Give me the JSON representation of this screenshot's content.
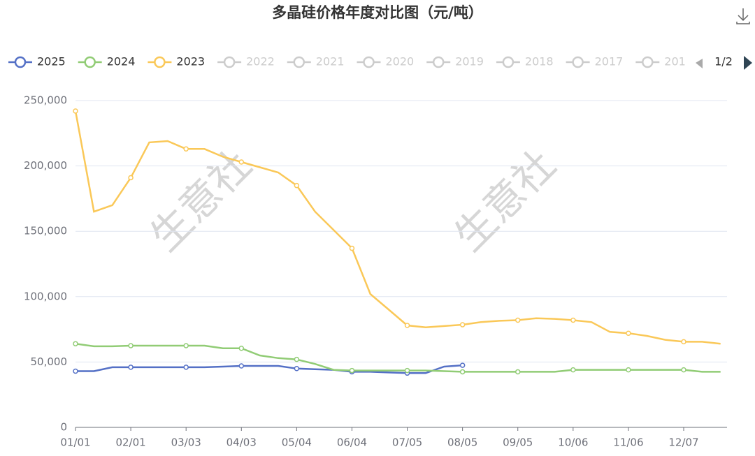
{
  "chart_data": {
    "type": "line",
    "title": "多晶硅价格年度对比图（元/吨）",
    "watermark": "生意社",
    "categories": [
      "01/01",
      null,
      null,
      "02/01",
      null,
      null,
      "03/03",
      null,
      null,
      "04/03",
      null,
      null,
      "05/04",
      null,
      null,
      "06/04",
      null,
      null,
      "07/05",
      null,
      null,
      "08/05",
      null,
      null,
      "09/05",
      null,
      null,
      "10/06",
      null,
      null,
      "11/06",
      null,
      null,
      "12/07",
      null,
      null
    ],
    "series": [
      {
        "name": "2025",
        "color": "#5470c6",
        "values": [
          43000,
          43000,
          46000,
          46000,
          46000,
          46000,
          46000,
          46000,
          46500,
          47000,
          47000,
          47000,
          45000,
          44500,
          44000,
          42500,
          42500,
          42000,
          41500,
          41500,
          46500,
          47500,
          null,
          null,
          null,
          null,
          null,
          null,
          null,
          null,
          null,
          null,
          null,
          null,
          null,
          null
        ]
      },
      {
        "name": "2024",
        "color": "#91cc75",
        "values": [
          64000,
          62000,
          62000,
          62500,
          62500,
          62500,
          62500,
          62500,
          60500,
          60500,
          55000,
          53000,
          52000,
          48500,
          44000,
          43500,
          43500,
          43500,
          43500,
          43500,
          43000,
          42500,
          42500,
          42500,
          42500,
          42500,
          42500,
          44000,
          44000,
          44000,
          44000,
          44000,
          44000,
          44000,
          42500,
          42500
        ]
      },
      {
        "name": "2023",
        "color": "#fac858",
        "values": [
          242000,
          165000,
          170000,
          191000,
          218000,
          219000,
          213000,
          213000,
          207000,
          203000,
          199000,
          195000,
          185000,
          165000,
          151000,
          137000,
          102000,
          90000,
          78000,
          76500,
          77500,
          78500,
          80500,
          81500,
          82000,
          83500,
          83000,
          82000,
          80500,
          73000,
          72000,
          70000,
          67000,
          65500,
          65500,
          64000
        ]
      }
    ],
    "legend_inactive": [
      "2022",
      "2021",
      "2020",
      "2019",
      "2018",
      "2017",
      "201"
    ],
    "legend_page": "1/2",
    "ylim": [
      0,
      250000
    ],
    "yticks": [
      {
        "value": 0,
        "label": "0"
      },
      {
        "value": 50000,
        "label": "50,000"
      },
      {
        "value": 100000,
        "label": "100,000"
      },
      {
        "value": 150000,
        "label": "150,000"
      },
      {
        "value": 200000,
        "label": "200,000"
      },
      {
        "value": 250000,
        "label": "250,000"
      }
    ],
    "grid": true
  }
}
